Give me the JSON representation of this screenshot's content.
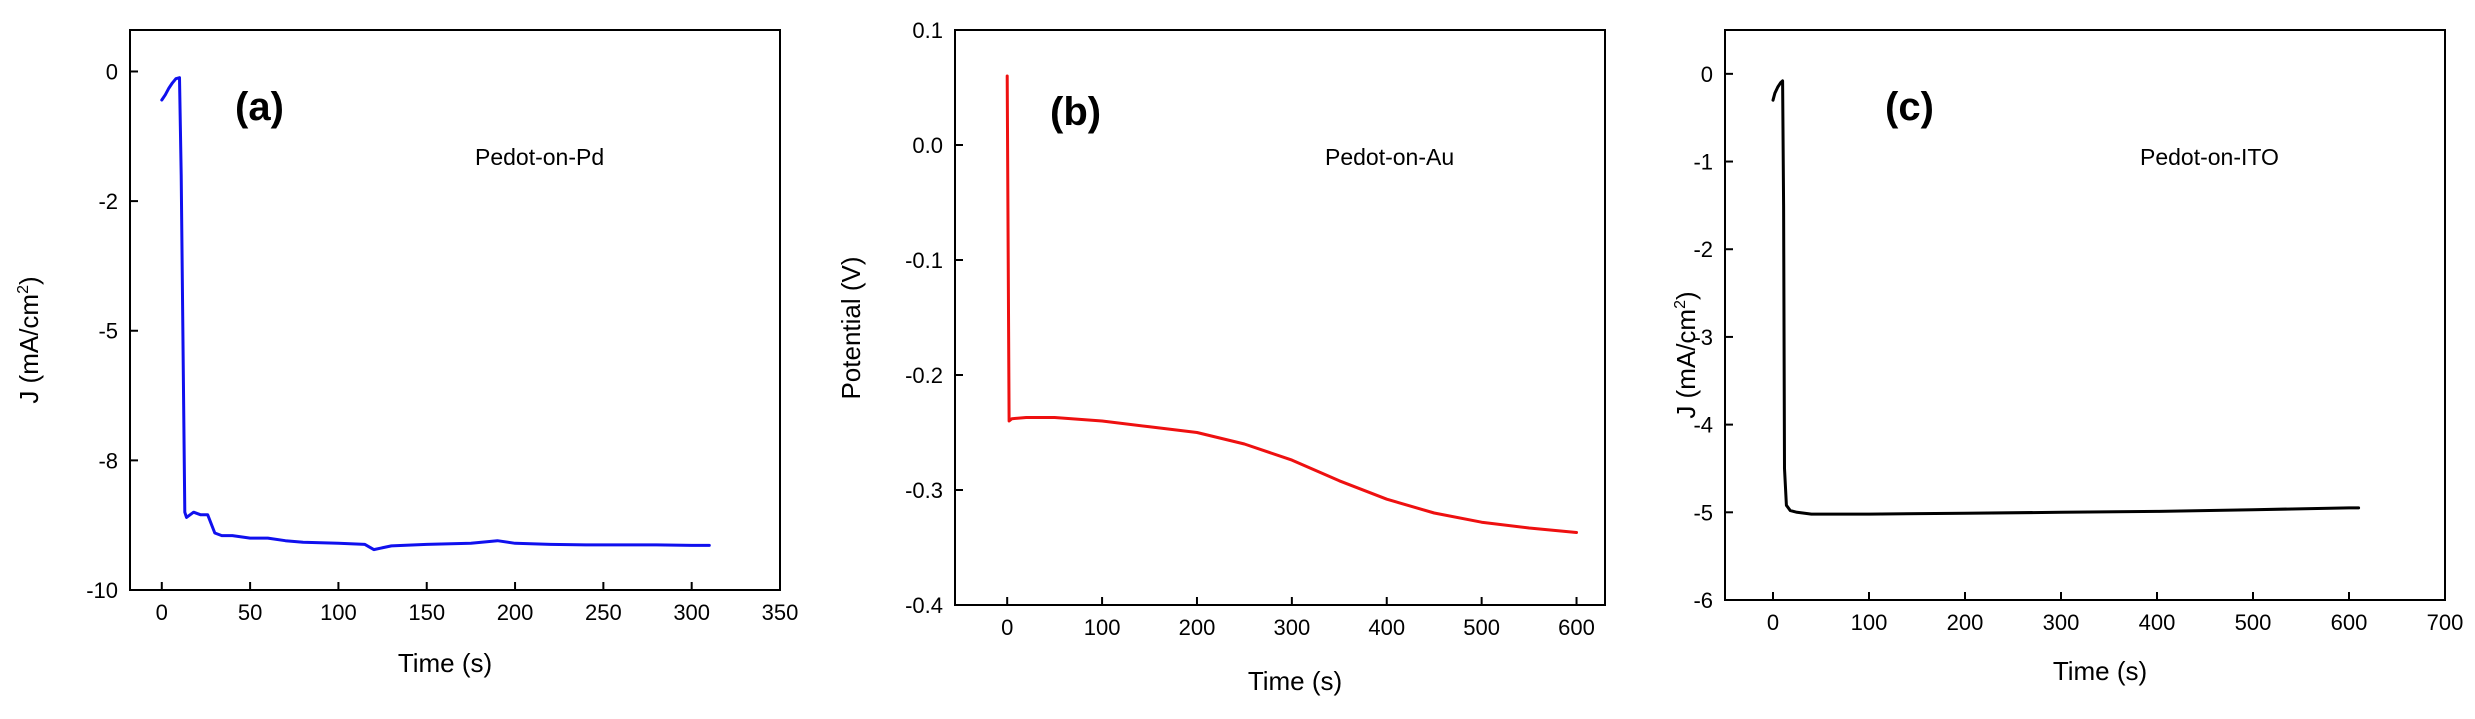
{
  "chart_data": [
    {
      "type": "line",
      "panel_label": "(a)",
      "annotation": "Pedot-on-Pd",
      "xlabel": "Time (s)",
      "ylabel_main": "J (mA/cm",
      "ylabel_sup": "2",
      "ylabel_close": ")",
      "xlim": [
        -18,
        350
      ],
      "ylim": [
        -10,
        0.8
      ],
      "xticks": [
        0,
        50,
        100,
        150,
        200,
        250,
        300,
        350
      ],
      "xtick_labels": [
        "0",
        "50",
        "100",
        "150",
        "200",
        "250",
        "300",
        "350"
      ],
      "yticks": [
        0,
        -2.5,
        -5,
        -7.5,
        -10
      ],
      "ytick_labels": [
        "0",
        "-2",
        "-5",
        "-8",
        "-10"
      ],
      "series": [
        {
          "name": "Pedot-on-Pd",
          "color": "#1010ee",
          "x": [
            0,
            2,
            4,
            6,
            8,
            10,
            11,
            13,
            14,
            18,
            22,
            26,
            30,
            34,
            40,
            50,
            60,
            70,
            80,
            100,
            115,
            120,
            130,
            150,
            175,
            190,
            200,
            220,
            240,
            260,
            280,
            300,
            310
          ],
          "y": [
            -0.55,
            -0.45,
            -0.32,
            -0.22,
            -0.14,
            -0.12,
            -2.0,
            -8.5,
            -8.6,
            -8.5,
            -8.55,
            -8.55,
            -8.9,
            -8.95,
            -8.95,
            -9.0,
            -9.0,
            -9.05,
            -9.08,
            -9.1,
            -9.12,
            -9.22,
            -9.15,
            -9.12,
            -9.1,
            -9.05,
            -9.1,
            -9.12,
            -9.13,
            -9.13,
            -9.13,
            -9.14,
            -9.14
          ]
        }
      ]
    },
    {
      "type": "line",
      "panel_label": "(b)",
      "annotation": "Pedot-on-Au",
      "xlabel": "Time (s)",
      "ylabel_main": "Potential (V)",
      "ylabel_sup": "",
      "ylabel_close": "",
      "xlim": [
        -55,
        630
      ],
      "ylim": [
        -0.4,
        0.1
      ],
      "xticks": [
        0,
        100,
        200,
        300,
        400,
        500,
        600
      ],
      "xtick_labels": [
        "0",
        "100",
        "200",
        "300",
        "400",
        "500",
        "600"
      ],
      "yticks": [
        0.1,
        0.0,
        -0.1,
        -0.2,
        -0.3,
        -0.4
      ],
      "ytick_labels": [
        "0.1",
        "0.0",
        "-0.1",
        "-0.2",
        "-0.3",
        "-0.4"
      ],
      "series": [
        {
          "name": "Pedot-on-Au",
          "color": "#ee1010",
          "x": [
            0,
            2,
            5,
            20,
            50,
            100,
            150,
            200,
            250,
            300,
            350,
            400,
            450,
            500,
            550,
            600
          ],
          "y": [
            0.06,
            -0.24,
            -0.238,
            -0.237,
            -0.237,
            -0.24,
            -0.245,
            -0.25,
            -0.26,
            -0.274,
            -0.292,
            -0.308,
            -0.32,
            -0.328,
            -0.333,
            -0.337
          ]
        }
      ]
    },
    {
      "type": "line",
      "panel_label": "(c)",
      "annotation": "Pedot-on-ITO",
      "xlabel": "Time (s)",
      "ylabel_main": "J (mA/cm",
      "ylabel_sup": "2",
      "ylabel_close": ")",
      "xlim": [
        -50,
        700
      ],
      "ylim": [
        -6,
        0.5
      ],
      "xticks": [
        0,
        100,
        200,
        300,
        400,
        500,
        600,
        700
      ],
      "xtick_labels": [
        "0",
        "100",
        "200",
        "300",
        "400",
        "500",
        "600",
        "700"
      ],
      "yticks": [
        0,
        -1,
        -2,
        -3,
        -4,
        -5,
        -6
      ],
      "ytick_labels": [
        "0",
        "-1",
        "-2",
        "-3",
        "-4",
        "-5",
        "-6"
      ],
      "series": [
        {
          "name": "Pedot-on-ITO",
          "color": "#000000",
          "x": [
            0,
            2,
            5,
            8,
            10,
            11,
            12,
            14,
            18,
            25,
            40,
            60,
            100,
            200,
            300,
            400,
            500,
            600,
            610
          ],
          "y": [
            -0.3,
            -0.22,
            -0.15,
            -0.1,
            -0.08,
            -1.5,
            -4.5,
            -4.92,
            -4.98,
            -5.0,
            -5.02,
            -5.02,
            -5.02,
            -5.01,
            -5.0,
            -4.99,
            -4.97,
            -4.95,
            -4.95
          ]
        }
      ]
    }
  ]
}
